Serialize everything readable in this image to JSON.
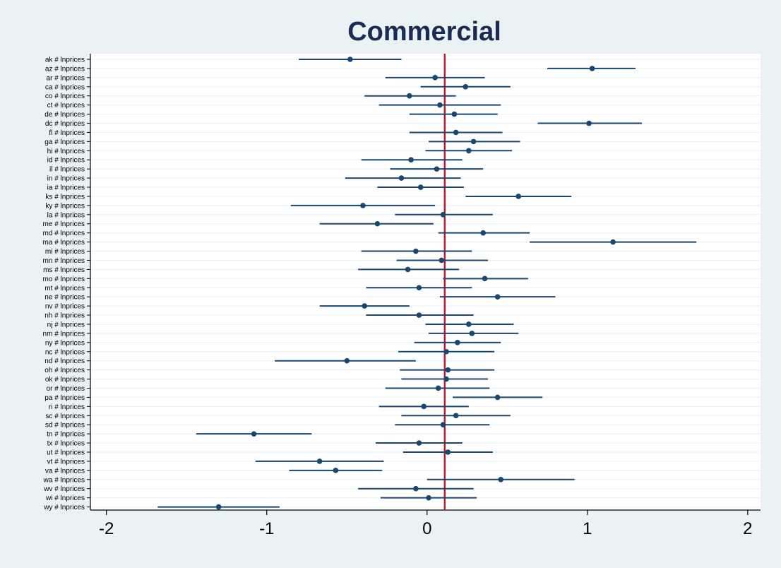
{
  "chart_data": {
    "type": "scatter",
    "subtype": "coefficient-plot-with-confidence-intervals",
    "title": "Commercial",
    "xlabel": "",
    "ylabel": "",
    "xlim": [
      -2.1,
      2.08
    ],
    "xticks": [
      -2,
      -1,
      0,
      1,
      2
    ],
    "xtick_labels": [
      "-2",
      "-1",
      "0",
      "1",
      "2"
    ],
    "reference_line": 0.11,
    "grid": "horizontal",
    "colors": {
      "background": "#EAF2F3",
      "plot_background": "#FFFFFF",
      "gridline": "#EAF2F3",
      "estimate": "#1A476F",
      "reference_line": "#C8102E",
      "title": "#1C2A56"
    },
    "categories": [
      "ak # lnprices",
      "az # lnprices",
      "ar # lnprices",
      "ca # lnprices",
      "co # lnprices",
      "ct # lnprices",
      "de # lnprices",
      "dc # lnprices",
      "fl # lnprices",
      "ga # lnprices",
      "hi # lnprices",
      "id # lnprices",
      "il # lnprices",
      "in # lnprices",
      "ia # lnprices",
      "ks # lnprices",
      "ky # lnprices",
      "la # lnprices",
      "me # lnprices",
      "md # lnprices",
      "ma # lnprices",
      "mi # lnprices",
      "mn # lnprices",
      "ms # lnprices",
      "mo # lnprices",
      "mt # lnprices",
      "ne # lnprices",
      "nv # lnprices",
      "nh # lnprices",
      "nj # lnprices",
      "nm # lnprices",
      "ny # lnprices",
      "nc # lnprices",
      "nd # lnprices",
      "oh # lnprices",
      "ok # lnprices",
      "or # lnprices",
      "pa # lnprices",
      "ri # lnprices",
      "sc # lnprices",
      "sd # lnprices",
      "tn # lnprices",
      "tx # lnprices",
      "ut # lnprices",
      "vt # lnprices",
      "va # lnprices",
      "wa # lnprices",
      "wv # lnprices",
      "wi # lnprices",
      "wy # lnprices"
    ],
    "estimates": [
      -0.48,
      1.03,
      0.05,
      0.24,
      -0.11,
      0.08,
      0.17,
      1.01,
      0.18,
      0.29,
      0.26,
      -0.1,
      0.06,
      -0.16,
      -0.04,
      0.57,
      -0.4,
      0.1,
      -0.31,
      0.35,
      1.16,
      -0.07,
      0.09,
      -0.12,
      0.36,
      -0.05,
      0.44,
      -0.39,
      -0.05,
      0.26,
      0.28,
      0.19,
      0.12,
      -0.5,
      0.13,
      0.12,
      0.07,
      0.44,
      -0.02,
      0.18,
      0.1,
      -1.08,
      -0.05,
      0.13,
      -0.67,
      -0.57,
      0.46,
      -0.07,
      0.01,
      -1.3
    ],
    "ci_low": [
      -0.8,
      0.75,
      -0.26,
      -0.04,
      -0.39,
      -0.3,
      -0.11,
      0.69,
      -0.11,
      0.01,
      -0.01,
      -0.41,
      -0.23,
      -0.51,
      -0.31,
      0.24,
      -0.85,
      -0.2,
      -0.67,
      0.07,
      0.64,
      -0.41,
      -0.19,
      -0.43,
      0.1,
      -0.38,
      0.08,
      -0.67,
      -0.38,
      -0.01,
      0.01,
      -0.08,
      -0.18,
      -0.95,
      -0.17,
      -0.16,
      -0.26,
      0.16,
      -0.3,
      -0.16,
      -0.2,
      -1.44,
      -0.32,
      -0.15,
      -1.07,
      -0.86,
      0.0,
      -0.43,
      -0.29,
      -1.68
    ],
    "ci_high": [
      -0.16,
      1.3,
      0.36,
      0.52,
      0.18,
      0.46,
      0.44,
      1.34,
      0.47,
      0.58,
      0.53,
      0.22,
      0.35,
      0.21,
      0.23,
      0.9,
      0.05,
      0.41,
      0.04,
      0.64,
      1.68,
      0.28,
      0.38,
      0.2,
      0.63,
      0.28,
      0.8,
      -0.11,
      0.29,
      0.54,
      0.57,
      0.46,
      0.42,
      -0.07,
      0.42,
      0.38,
      0.39,
      0.72,
      0.26,
      0.52,
      0.39,
      -0.72,
      0.22,
      0.41,
      -0.27,
      -0.28,
      0.92,
      0.29,
      0.31,
      -0.92
    ]
  }
}
